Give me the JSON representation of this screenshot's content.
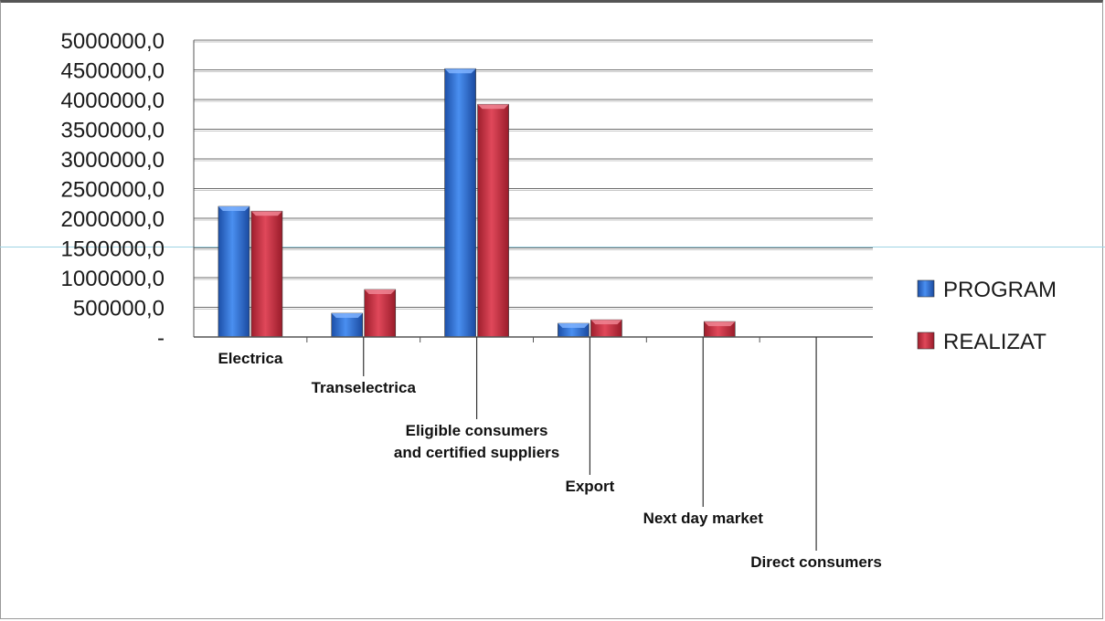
{
  "chart_data": {
    "type": "bar",
    "categories": [
      "Electrica",
      "Transelectrica",
      "Eligible consumers and certified suppliers",
      "Export",
      "Next day market",
      "Direct consumers"
    ],
    "category_lines": [
      [
        "Electrica"
      ],
      [
        "Transelectrica"
      ],
      [
        "Eligible consumers",
        "and certified suppliers"
      ],
      [
        "Export"
      ],
      [
        "Next day market"
      ],
      [
        "Direct consumers"
      ]
    ],
    "series": [
      {
        "name": "PROGRAM",
        "color": "#2f6fd6",
        "values": [
          2200000,
          400000,
          4520000,
          230000,
          0,
          0
        ]
      },
      {
        "name": "REALIZAT",
        "color": "#cc3040",
        "values": [
          2120000,
          800000,
          3920000,
          290000,
          260000,
          0
        ]
      }
    ],
    "ylim": [
      0,
      5000000
    ],
    "yticks": [
      0,
      500000,
      1000000,
      1500000,
      2000000,
      2500000,
      3000000,
      3500000,
      4000000,
      4500000,
      5000000
    ],
    "ytick_labels": [
      "-",
      "500000,0",
      "1000000,0",
      "1500000,0",
      "2000000,0",
      "2500000,0",
      "3000000,0",
      "3500000,0",
      "4000000,0",
      "4500000,0",
      "5000000,0"
    ],
    "grid": true,
    "legend_position": "right",
    "title": "",
    "xlabel": "",
    "ylabel": ""
  }
}
